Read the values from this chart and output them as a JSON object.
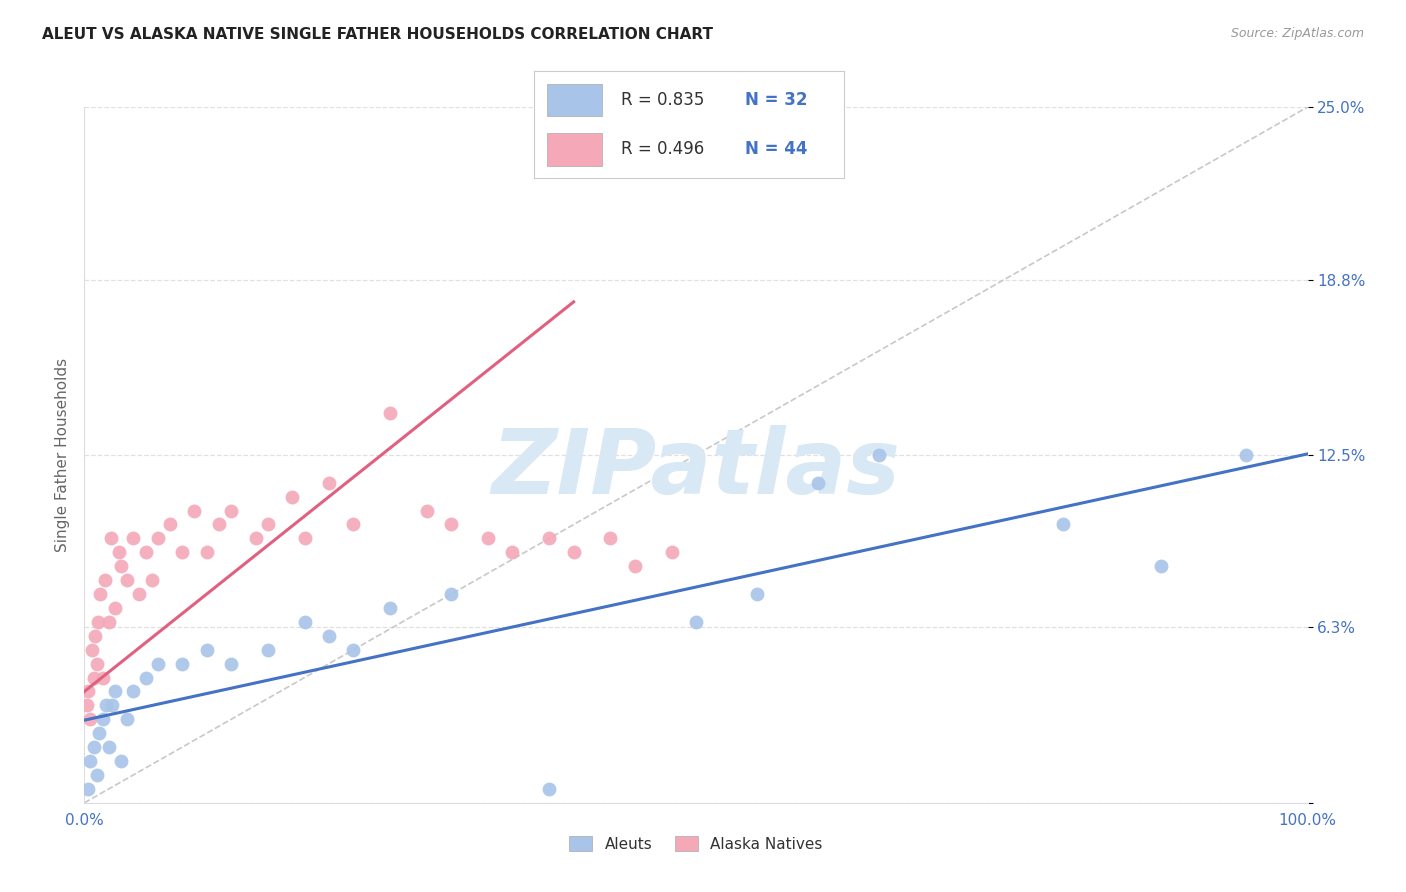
{
  "title": "ALEUT VS ALASKA NATIVE SINGLE FATHER HOUSEHOLDS CORRELATION CHART",
  "source": "Source: ZipAtlas.com",
  "ylabel": "Single Father Households",
  "ytick_values": [
    0,
    6.3,
    12.5,
    18.8,
    25.0
  ],
  "ytick_labels": [
    "",
    "6.3%",
    "12.5%",
    "18.8%",
    "25.0%"
  ],
  "xtick_values": [
    0,
    25,
    50,
    75,
    100
  ],
  "xtick_labels": [
    "0.0%",
    "",
    "",
    "",
    "100.0%"
  ],
  "xlim": [
    0,
    100
  ],
  "ylim": [
    0,
    25.0
  ],
  "aleuts_color": "#a8c4e8",
  "alaska_color": "#f4a8b8",
  "aleuts_line_color": "#4472c4",
  "alaska_line_color": "#e06080",
  "diagonal_color": "#c8c8c8",
  "watermark_text": "ZIPatlas",
  "watermark_color": "#d8e8f4",
  "background_color": "#ffffff",
  "grid_color": "#e0e0e0",
  "legend_text_color": "#4472c4",
  "legend_r_color": "#333333",
  "aleuts_r": "R = 0.835",
  "aleuts_n": "N = 32",
  "alaska_r": "R = 0.496",
  "alaska_n": "N = 44",
  "aleuts_x": [
    0.3,
    0.5,
    0.8,
    1.0,
    1.2,
    1.5,
    1.8,
    2.0,
    2.3,
    2.5,
    3.0,
    3.5,
    4.0,
    5.0,
    6.0,
    8.0,
    10.0,
    12.0,
    15.0,
    18.0,
    20.0,
    22.0,
    25.0,
    30.0,
    38.0,
    50.0,
    55.0,
    60.0,
    65.0,
    80.0,
    88.0,
    95.0
  ],
  "aleuts_y": [
    0.5,
    1.5,
    2.0,
    1.0,
    2.5,
    3.0,
    3.5,
    2.0,
    3.5,
    4.0,
    1.5,
    3.0,
    4.0,
    4.5,
    5.0,
    5.0,
    5.5,
    5.0,
    5.5,
    6.5,
    6.0,
    5.5,
    7.0,
    7.5,
    0.5,
    6.5,
    7.5,
    11.5,
    12.5,
    10.0,
    8.5,
    12.5
  ],
  "alaska_x": [
    0.2,
    0.3,
    0.5,
    0.6,
    0.8,
    0.9,
    1.0,
    1.1,
    1.3,
    1.5,
    1.7,
    2.0,
    2.2,
    2.5,
    2.8,
    3.0,
    3.5,
    4.0,
    4.5,
    5.0,
    5.5,
    6.0,
    7.0,
    8.0,
    9.0,
    10.0,
    11.0,
    12.0,
    14.0,
    15.0,
    17.0,
    18.0,
    20.0,
    22.0,
    25.0,
    28.0,
    30.0,
    33.0,
    35.0,
    38.0,
    40.0,
    43.0,
    45.0,
    48.0
  ],
  "alaska_y": [
    3.5,
    4.0,
    3.0,
    5.5,
    4.5,
    6.0,
    5.0,
    6.5,
    7.5,
    4.5,
    8.0,
    6.5,
    9.5,
    7.0,
    9.0,
    8.5,
    8.0,
    9.5,
    7.5,
    9.0,
    8.0,
    9.5,
    10.0,
    9.0,
    10.5,
    9.0,
    10.0,
    10.5,
    9.5,
    10.0,
    11.0,
    9.5,
    11.5,
    10.0,
    14.0,
    10.5,
    10.0,
    9.5,
    9.0,
    9.5,
    9.0,
    9.5,
    8.5,
    9.0
  ]
}
